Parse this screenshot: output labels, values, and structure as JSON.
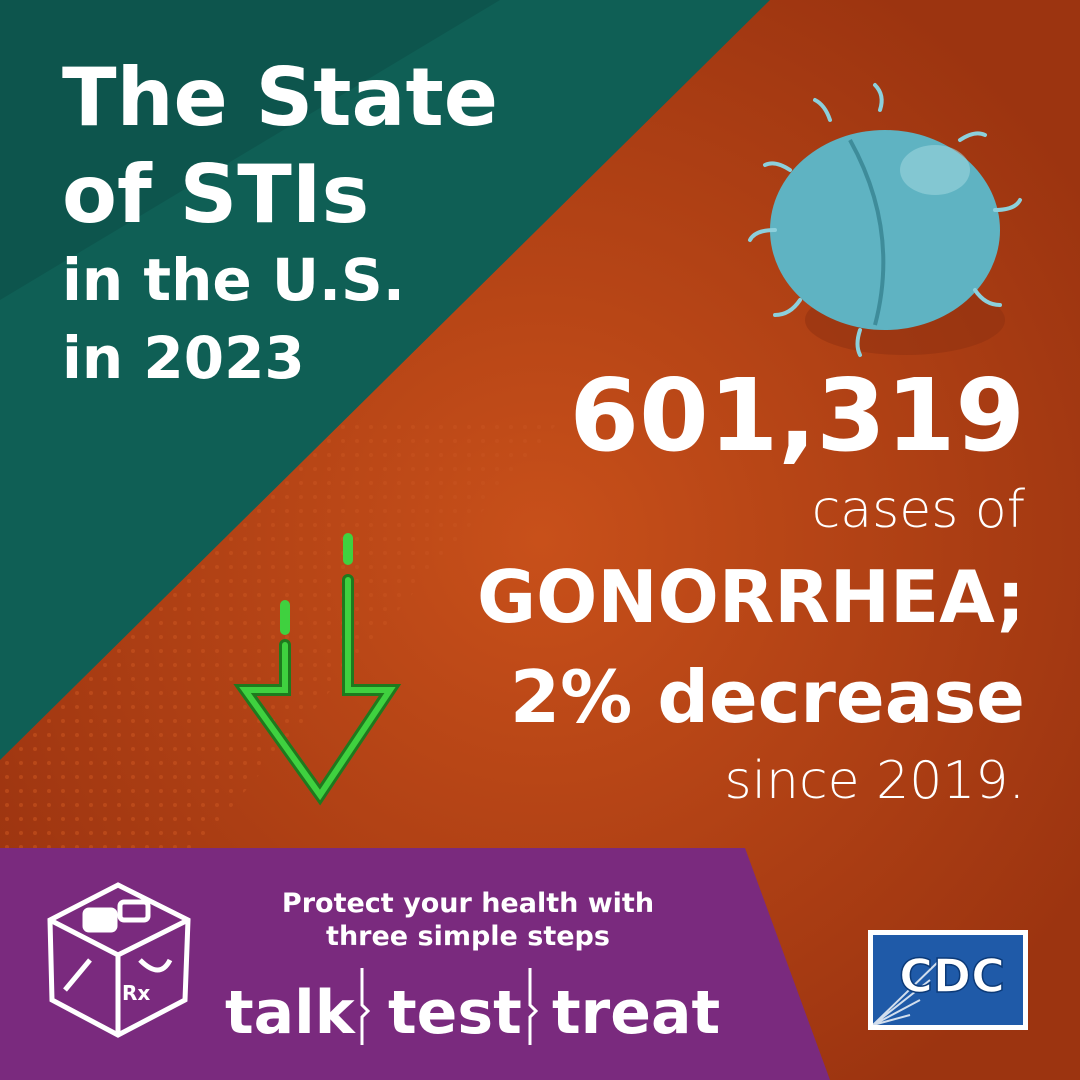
{
  "header": {
    "title_lines": [
      "The State",
      "of STIs",
      "in the U.S.",
      "in 2023"
    ]
  },
  "stat": {
    "number": "601,319",
    "lines": [
      "cases of",
      "GONORRHEA;",
      "2% decrease",
      "since 2019."
    ]
  },
  "footer": {
    "lines": [
      "Protect your health with",
      "three simple steps"
    ],
    "steps": [
      "talk",
      "test",
      "treat"
    ],
    "icon_label": "Rx",
    "logo": "CDC"
  }
}
